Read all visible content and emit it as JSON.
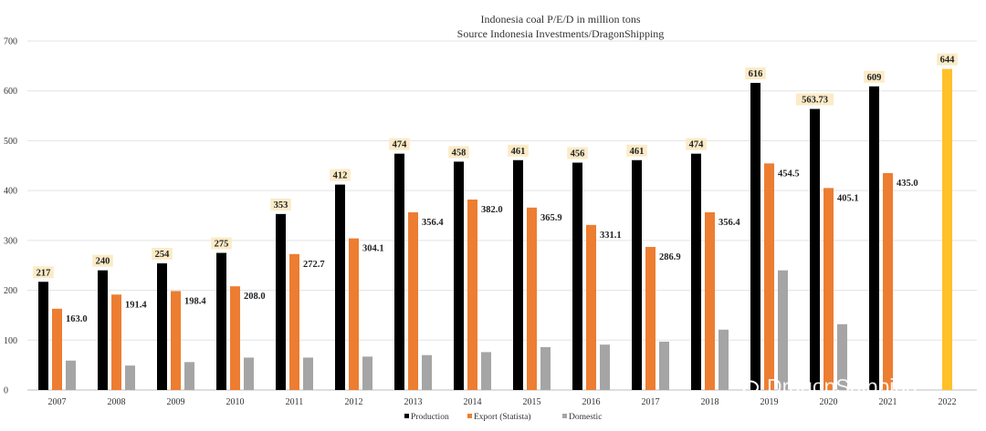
{
  "chart_data": {
    "type": "bar",
    "title": "Indonesia coal P/E/D in million tons",
    "subtitle": "Source Indonesia Investments/DragonShipping",
    "categories": [
      "2007",
      "2008",
      "2009",
      "2010",
      "2011",
      "2012",
      "2013",
      "2014",
      "2015",
      "2016",
      "2017",
      "2018",
      "2019",
      "2020",
      "2021",
      "2022"
    ],
    "ylim": [
      0,
      700
    ],
    "yticks": [
      0,
      100,
      200,
      300,
      400,
      500,
      600,
      700
    ],
    "grid": true,
    "legend_position": "bottom",
    "series": [
      {
        "name": "Production",
        "color": "#000000",
        "values": [
          217,
          240,
          254,
          275,
          353,
          412,
          474,
          458,
          461,
          456,
          461,
          474,
          616,
          563.73,
          609,
          null
        ],
        "labels": [
          "217",
          "240",
          "254",
          "275",
          "353",
          "412",
          "474",
          "458",
          "461",
          "456",
          "461",
          "474",
          "616",
          "563.73",
          "609",
          ""
        ]
      },
      {
        "name": "Export (Statista)",
        "color": "#ED7D31",
        "values": [
          163.0,
          191.4,
          198.4,
          208.0,
          272.7,
          304.1,
          356.4,
          382.0,
          365.9,
          331.1,
          286.9,
          356.4,
          454.5,
          405.1,
          435.0,
          null
        ],
        "labels": [
          "163.0",
          "191.4",
          "198.4",
          "208.0",
          "272.7",
          "304.1",
          "356.4",
          "382.0",
          "365.9",
          "331.1",
          "286.9",
          "356.4",
          "454.5",
          "405.1",
          "435.0",
          ""
        ]
      },
      {
        "name": "Domestic",
        "color": "#A5A5A5",
        "values": [
          59,
          49,
          56,
          65,
          65,
          67,
          70,
          76,
          86,
          91,
          97,
          121,
          240,
          132,
          null,
          null
        ],
        "labels": []
      }
    ],
    "highlight": {
      "category": "2022",
      "value": 644,
      "label": "644",
      "color": "#FFC02A"
    },
    "watermark": "DragonShipping"
  }
}
